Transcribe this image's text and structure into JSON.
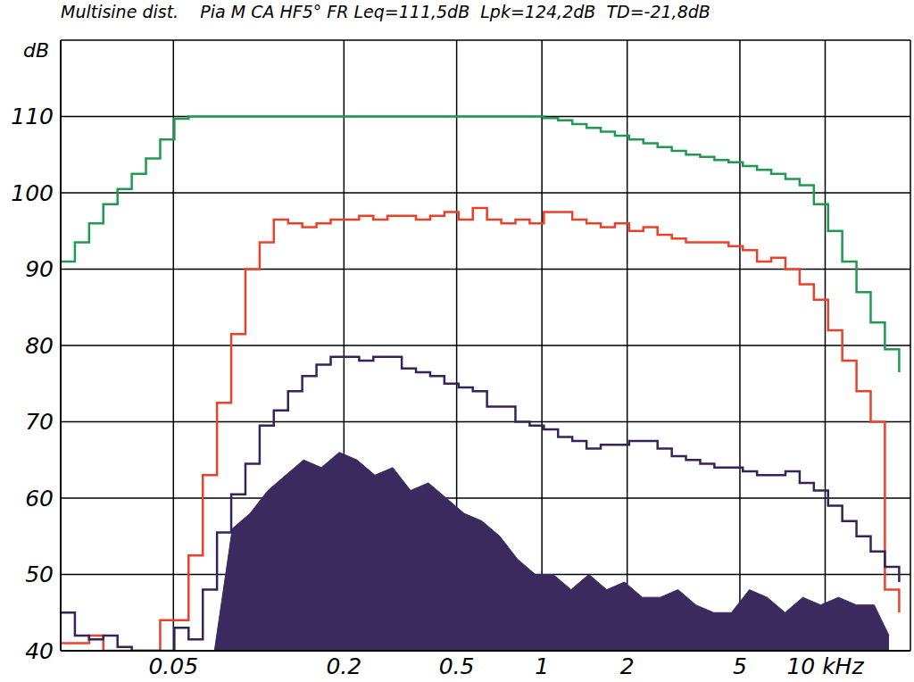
{
  "chart_data": {
    "type": "line",
    "title": "Multisine dist.    Pia M CA HF5° FR Leq=111,5dB  Lpk=124,2dB  TD=-21,8dB",
    "ylabel": "dB",
    "log": "x",
    "grid": true,
    "xlim": [
      0.02,
      20
    ],
    "ylim": [
      40,
      120
    ],
    "xticks": [
      0.05,
      0.2,
      0.5,
      1,
      2,
      5,
      {
        "value": 10,
        "label": "10 kHz"
      }
    ],
    "yticks": [
      40,
      50,
      60,
      70,
      80,
      90,
      100,
      110
    ],
    "series": [
      {
        "color": "#1f9a4f",
        "line_style": "steps",
        "x": [
          0.02,
          0.02245,
          0.0252,
          0.02828,
          0.03175,
          0.03564,
          0.04,
          0.0449,
          0.0504,
          0.05657,
          0.0635,
          0.07127,
          0.08,
          0.0898,
          0.1008,
          0.1131,
          0.127,
          0.1425,
          0.16,
          0.1796,
          0.2016,
          0.2263,
          0.254,
          0.2851,
          0.32,
          0.3592,
          0.4032,
          0.4525,
          0.508,
          0.5702,
          0.64,
          0.7184,
          0.8063,
          0.9051,
          1.016,
          1.14,
          1.28,
          1.437,
          1.613,
          1.81,
          2.032,
          2.281,
          2.56,
          2.874,
          3.225,
          3.62,
          4.064,
          4.561,
          5.12,
          5.747,
          6.451,
          7.241,
          8.127,
          9.123,
          10.24,
          11.49,
          12.9,
          14.48,
          16.25,
          18.25
        ],
        "values": [
          91,
          93.5,
          96,
          98.5,
          100.5,
          102.5,
          104.5,
          107,
          109.7,
          110,
          110,
          110,
          110,
          110,
          110,
          110,
          110,
          110,
          110,
          110,
          110,
          110,
          110,
          110,
          110,
          110,
          110,
          110,
          110,
          110,
          110,
          110,
          110,
          110,
          109.8,
          109.5,
          109,
          108.5,
          108,
          107.5,
          107,
          106.5,
          106,
          105.5,
          105,
          104.7,
          104.3,
          104,
          103.5,
          103,
          102.5,
          101.8,
          101,
          98.5,
          95,
          91,
          87,
          83,
          79.5,
          76.5
        ]
      },
      {
        "color": "#e8412c",
        "line_style": "steps",
        "x": [
          0.02,
          0.02245,
          0.0252,
          0.02828,
          0.03175,
          0.03564,
          0.04,
          0.0449,
          0.0504,
          0.05657,
          0.0635,
          0.07127,
          0.08,
          0.0898,
          0.1008,
          0.1131,
          0.127,
          0.1425,
          0.16,
          0.1796,
          0.2016,
          0.2263,
          0.254,
          0.2851,
          0.32,
          0.3592,
          0.4032,
          0.4525,
          0.508,
          0.5702,
          0.64,
          0.7184,
          0.8063,
          0.9051,
          1.016,
          1.14,
          1.28,
          1.437,
          1.613,
          1.81,
          2.032,
          2.281,
          2.56,
          2.874,
          3.225,
          3.62,
          4.064,
          4.561,
          5.12,
          5.747,
          6.451,
          7.241,
          8.127,
          9.123,
          10.24,
          11.49,
          12.9,
          14.48,
          16.25,
          18.25
        ],
        "values": [
          41,
          41,
          42,
          40,
          40,
          40,
          40,
          44,
          44,
          52.5,
          63,
          72.5,
          81.5,
          90,
          93.5,
          96.5,
          96,
          95.5,
          96,
          96.5,
          96.5,
          97,
          96.5,
          97,
          97,
          96.5,
          97,
          97.5,
          96.5,
          98,
          96.5,
          96,
          96.5,
          96,
          97.5,
          97.5,
          96.5,
          96,
          95.5,
          96,
          95,
          95.5,
          94.5,
          94,
          93.5,
          93.5,
          93.5,
          93,
          92.5,
          91,
          91.5,
          90,
          88,
          86,
          82,
          78,
          74,
          70,
          48,
          45
        ]
      },
      {
        "color": "#34245a",
        "line_style": "steps",
        "x": [
          0.02,
          0.02245,
          0.0252,
          0.02828,
          0.03175,
          0.03564,
          0.04,
          0.0449,
          0.0504,
          0.05657,
          0.0635,
          0.07127,
          0.08,
          0.0898,
          0.1008,
          0.1131,
          0.127,
          0.1425,
          0.16,
          0.1796,
          0.2016,
          0.2263,
          0.254,
          0.2851,
          0.32,
          0.3592,
          0.4032,
          0.4525,
          0.508,
          0.5702,
          0.64,
          0.7184,
          0.8063,
          0.9051,
          1.016,
          1.14,
          1.28,
          1.437,
          1.613,
          1.81,
          2.032,
          2.281,
          2.56,
          2.874,
          3.225,
          3.62,
          4.064,
          4.561,
          5.12,
          5.747,
          6.451,
          7.241,
          8.127,
          9.123,
          10.24,
          11.49,
          12.9,
          14.48,
          16.25,
          18.25
        ],
        "values": [
          45,
          42,
          41.5,
          42,
          40.5,
          40,
          40,
          40,
          43,
          41.5,
          48,
          55.5,
          60.5,
          64.5,
          69.5,
          71.5,
          74,
          76,
          77.5,
          78.5,
          78.5,
          78,
          78.5,
          78.5,
          77,
          76.5,
          76,
          75,
          74.5,
          74,
          72,
          72,
          70,
          69.5,
          69,
          68,
          67.5,
          66.5,
          67,
          67,
          67.5,
          67.5,
          66.5,
          65.5,
          65,
          64.5,
          64,
          64,
          63.5,
          63,
          63,
          63.5,
          62,
          61,
          59,
          57,
          55,
          53,
          51,
          49
        ]
      },
      {
        "type": "area",
        "color": "#3a2a5e",
        "x": [
          0.0698,
          0.0807,
          0.0933,
          0.1078,
          0.1246,
          0.1441,
          0.1665,
          0.1925,
          0.2225,
          0.2572,
          0.2974,
          0.3438,
          0.3974,
          0.4594,
          0.531,
          0.614,
          0.71,
          0.82,
          0.948,
          1.096,
          1.267,
          1.465,
          1.693,
          1.957,
          2.263,
          2.616,
          3.024,
          3.495,
          4.04,
          4.67,
          5.4,
          6.24,
          7.22,
          8.34,
          9.64,
          11.15,
          12.89,
          14.9,
          16.8
        ],
        "values": [
          40,
          56,
          58,
          61,
          63,
          65,
          64,
          66,
          65,
          63,
          64,
          61,
          62,
          60,
          58,
          57,
          55,
          52,
          50,
          50,
          48,
          50,
          48,
          49,
          47,
          47,
          48,
          46,
          45,
          45,
          48,
          47,
          45,
          47,
          46,
          47,
          46,
          46,
          42
        ]
      }
    ]
  }
}
